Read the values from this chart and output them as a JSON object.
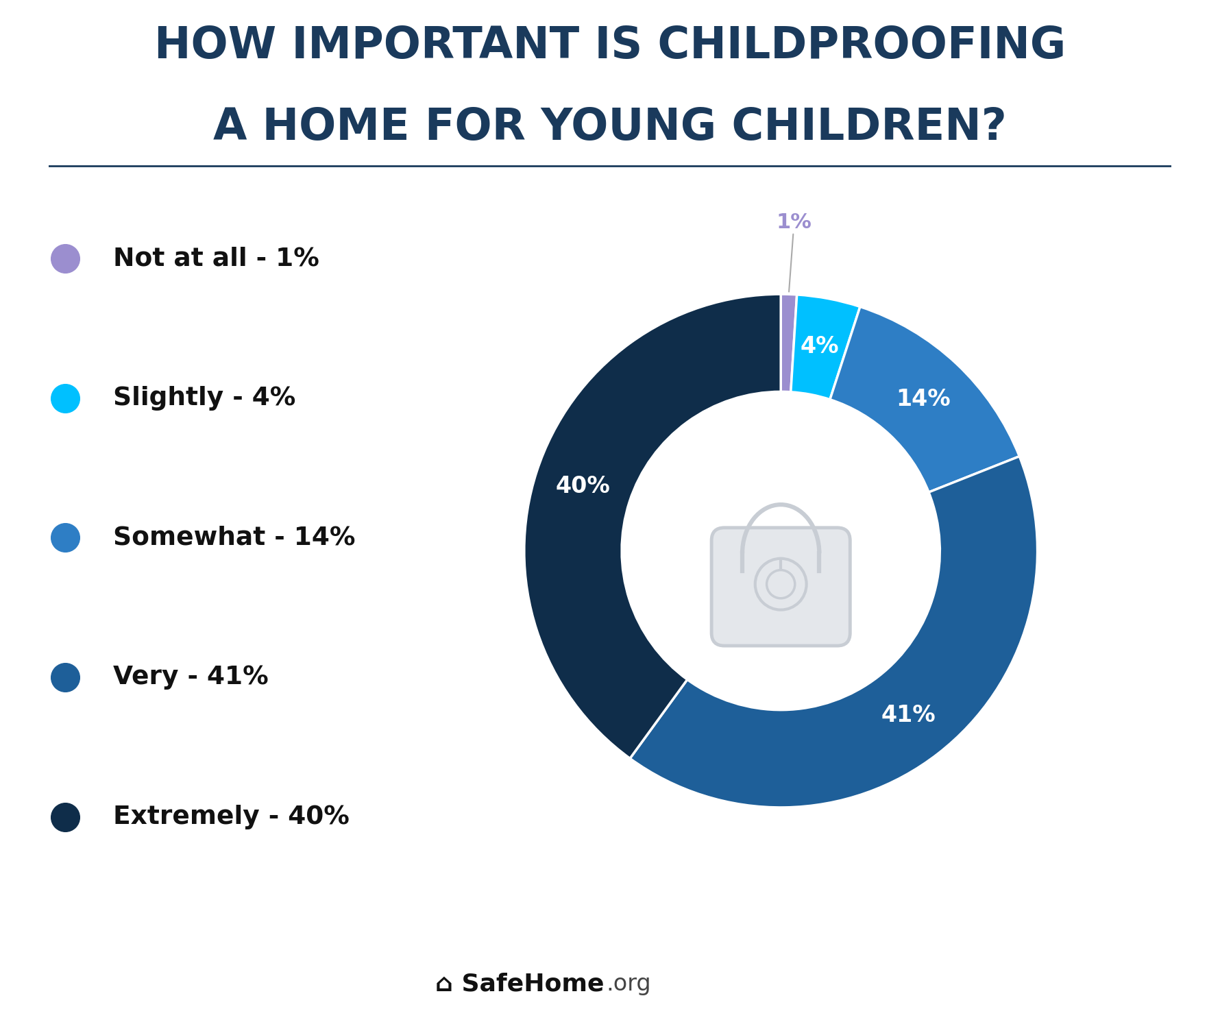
{
  "title_line1": "HOW IMPORTANT IS CHILDPROOFING",
  "title_line2": "A HOME FOR YOUNG CHILDREN?",
  "title_color": "#1a3a5c",
  "title_fontsize": 46,
  "labels": [
    "Not at all",
    "Slightly",
    "Somewhat",
    "Very",
    "Extremely"
  ],
  "values": [
    1,
    4,
    14,
    41,
    40
  ],
  "colors": [
    "#9b8ecf",
    "#00c0ff",
    "#2e7ec5",
    "#1e5f99",
    "#0f2d4a"
  ],
  "pct_labels": [
    "1%",
    "4%",
    "14%",
    "41%",
    "40%"
  ],
  "legend_labels": [
    "Not at all - 1%",
    "Slightly - 4%",
    "Somewhat - 14%",
    "Very - 41%",
    "Extremely - 40%"
  ],
  "bg_color": "#ffffff",
  "footer_bg": "#f0f0f0",
  "divider_color": "#1a3a5c",
  "donut_width": 0.38,
  "start_angle": 90
}
